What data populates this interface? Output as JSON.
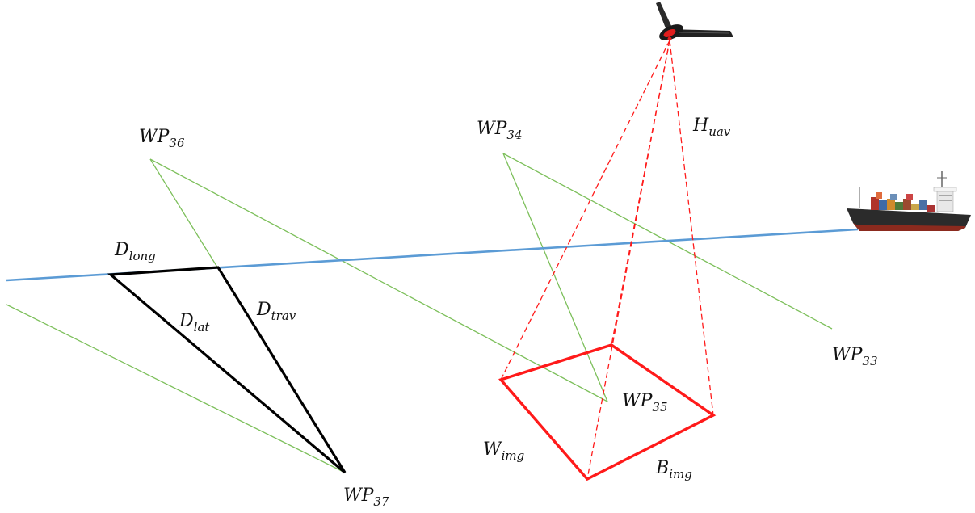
{
  "colors": {
    "flight_path": "#7cbf5a",
    "ship_track": "#5b9bd5",
    "footprint": "#ff1a1a",
    "triangle": "#000000",
    "label": "#111111"
  },
  "labels": {
    "wp36": {
      "main": "WP",
      "sub": "36"
    },
    "wp34": {
      "main": "WP",
      "sub": "34"
    },
    "wp33": {
      "main": "WP",
      "sub": "33"
    },
    "wp35": {
      "main": "WP",
      "sub": "35"
    },
    "wp37": {
      "main": "WP",
      "sub": "37"
    },
    "h_uav": {
      "main": "H",
      "sub": "uav"
    },
    "d_long": {
      "main": "D",
      "sub": "long"
    },
    "d_lat": {
      "main": "D",
      "sub": "lat"
    },
    "d_trav": {
      "main": "D",
      "sub": "trav"
    },
    "w_img": {
      "main": "W",
      "sub": "img"
    },
    "b_img": {
      "main": "B",
      "sub": "img"
    }
  },
  "icons": {
    "uav": "uav-drone-icon",
    "ship": "container-ship-icon"
  }
}
